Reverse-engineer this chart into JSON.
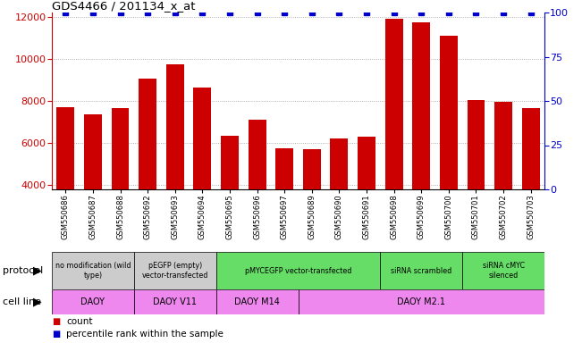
{
  "title": "GDS4466 / 201134_x_at",
  "samples": [
    "GSM550686",
    "GSM550687",
    "GSM550688",
    "GSM550692",
    "GSM550693",
    "GSM550694",
    "GSM550695",
    "GSM550696",
    "GSM550697",
    "GSM550689",
    "GSM550690",
    "GSM550691",
    "GSM550698",
    "GSM550699",
    "GSM550700",
    "GSM550701",
    "GSM550702",
    "GSM550703"
  ],
  "counts": [
    7700,
    7350,
    7650,
    9050,
    9750,
    8650,
    6350,
    7100,
    5750,
    5700,
    6200,
    6300,
    11900,
    11750,
    11100,
    8050,
    7950,
    7650
  ],
  "ylim_left": [
    3800,
    12200
  ],
  "ylim_right": [
    0,
    100
  ],
  "yticks_left": [
    4000,
    6000,
    8000,
    10000,
    12000
  ],
  "yticks_right": [
    0,
    25,
    50,
    75,
    100
  ],
  "bar_color": "#cc0000",
  "dot_color": "#0000cc",
  "protocol_groups": [
    {
      "label": "no modification (wild\ntype)",
      "start": 0,
      "end": 3,
      "color": "#cccccc"
    },
    {
      "label": "pEGFP (empty)\nvector-transfected",
      "start": 3,
      "end": 6,
      "color": "#cccccc"
    },
    {
      "label": "pMYCEGFP vector-transfected",
      "start": 6,
      "end": 12,
      "color": "#66dd66"
    },
    {
      "label": "siRNA scrambled",
      "start": 12,
      "end": 15,
      "color": "#66dd66"
    },
    {
      "label": "siRNA cMYC\nsilenced",
      "start": 15,
      "end": 18,
      "color": "#66dd66"
    }
  ],
  "cellline_groups": [
    {
      "label": "DAOY",
      "start": 0,
      "end": 3,
      "color": "#ee88ee"
    },
    {
      "label": "DAOY V11",
      "start": 3,
      "end": 6,
      "color": "#ee88ee"
    },
    {
      "label": "DAOY M14",
      "start": 6,
      "end": 9,
      "color": "#ee88ee"
    },
    {
      "label": "DAOY M2.1",
      "start": 9,
      "end": 18,
      "color": "#ee88ee"
    }
  ],
  "protocol_label": "protocol",
  "cellline_label": "cell line",
  "legend_count_label": "count",
  "legend_pct_label": "percentile rank within the sample"
}
